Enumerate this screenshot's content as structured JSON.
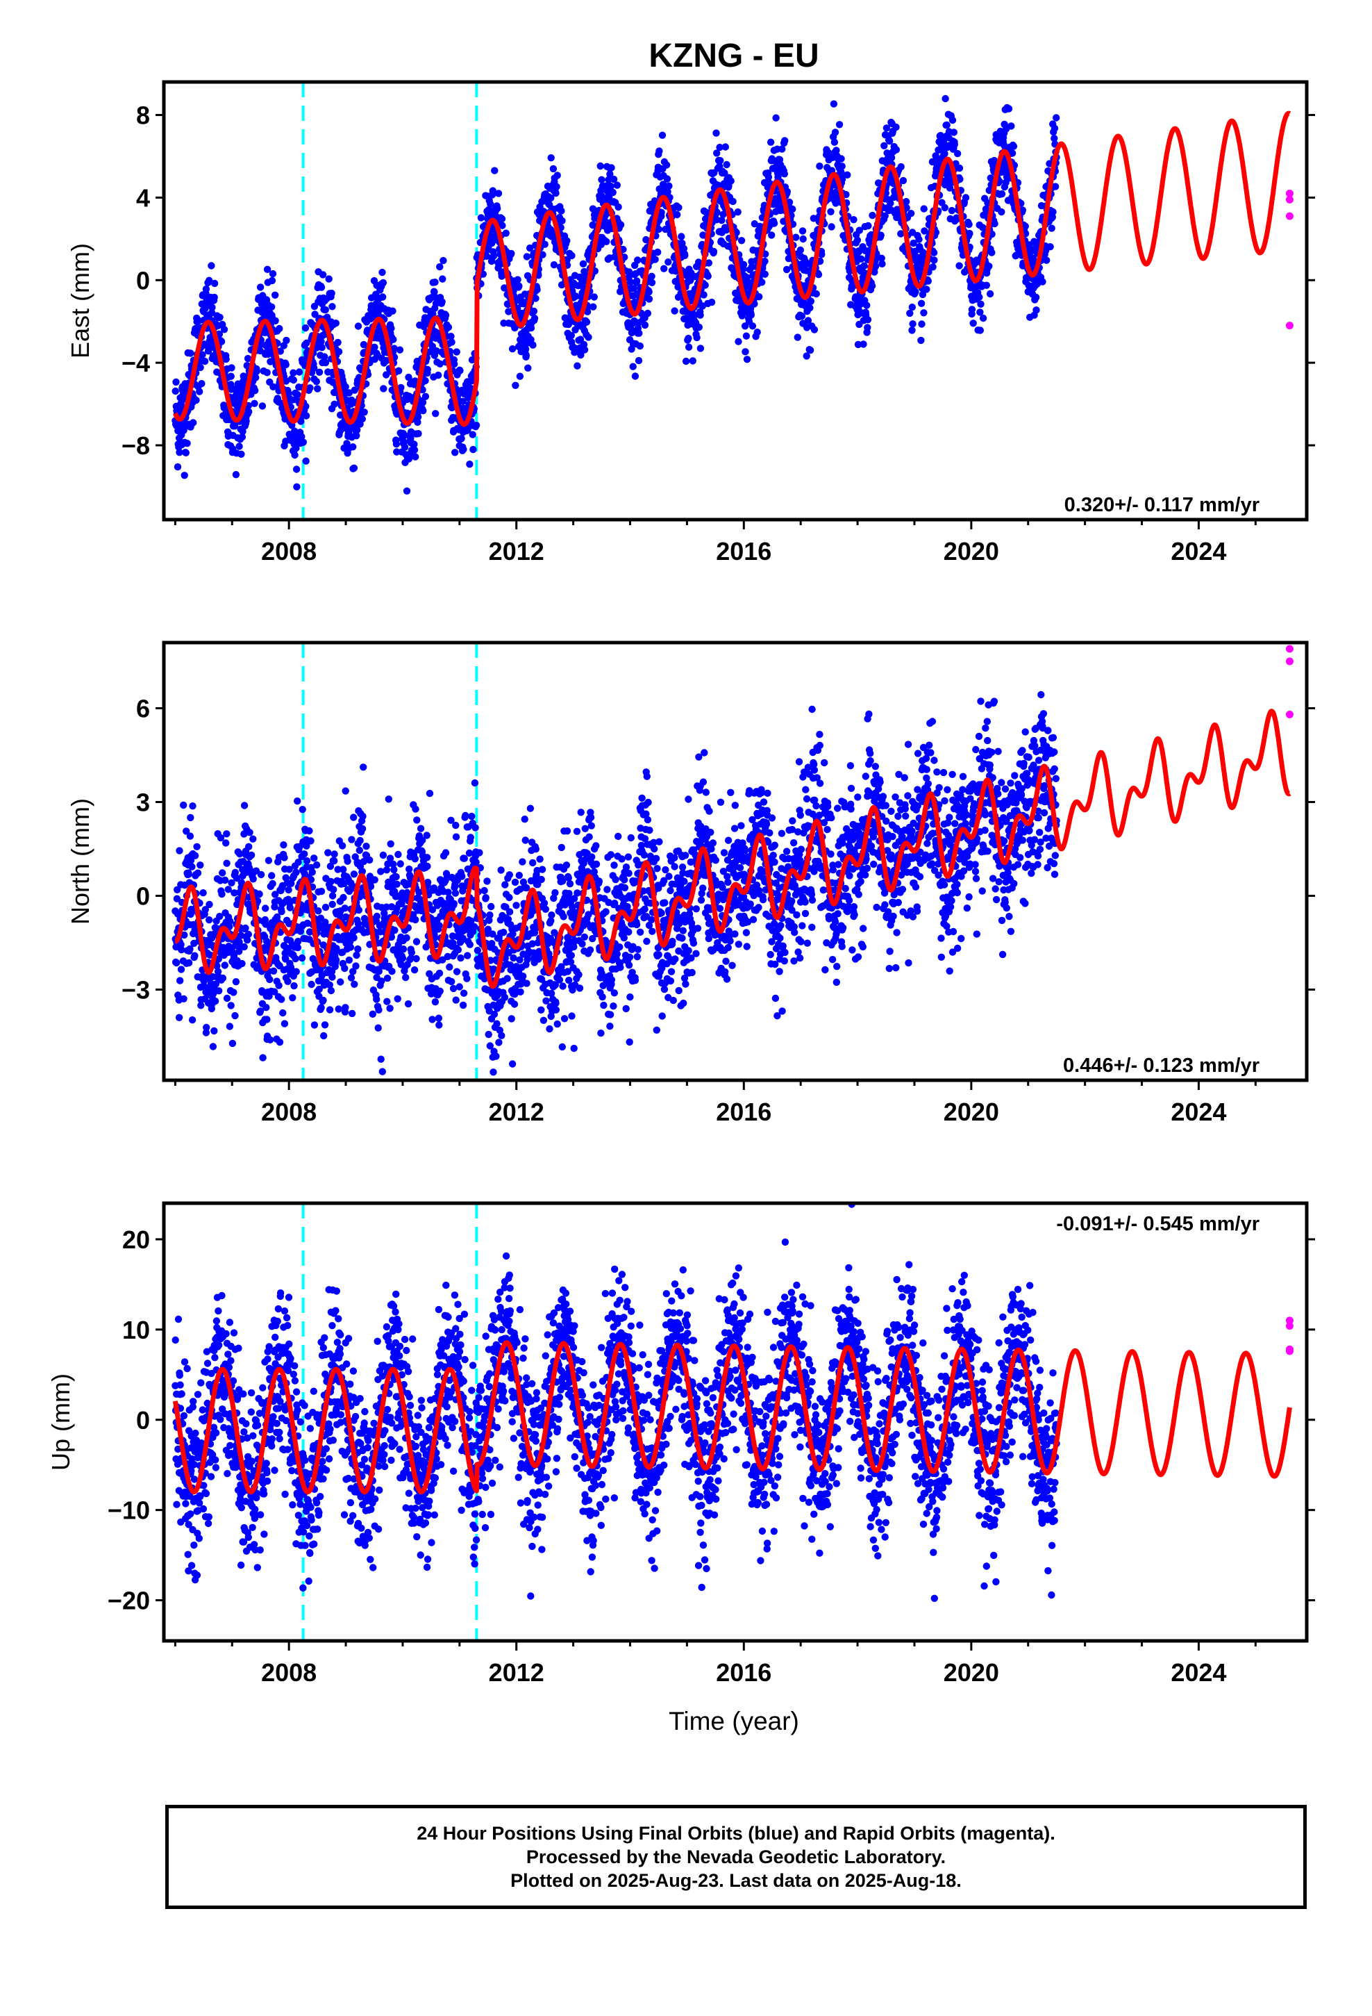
{
  "figure": {
    "title": "KZNG - EU",
    "xlabel": "Time (year)",
    "x_ticks": [
      2008,
      2012,
      2016,
      2020,
      2024
    ],
    "xlim": [
      2005.8,
      2025.9
    ],
    "colors": {
      "final_orbits": "#0000ff",
      "rapid_orbits": "#ff00ff",
      "model": "#ff0000",
      "offsets": "#00ffff"
    },
    "offset_epochs": [
      2008.25,
      2011.3
    ]
  },
  "caption": {
    "line1": "24 Hour Positions Using Final Orbits (blue) and Rapid Orbits (magenta).",
    "line2": "Processed by the Nevada Geodetic Laboratory.",
    "line3": "Plotted on 2025-Aug-23. Last data on 2025-Aug-18."
  },
  "chart_data": [
    {
      "type": "scatter",
      "ylabel": "East (mm)",
      "ylim": [
        -11.6,
        9.6
      ],
      "y_ticks": [
        8,
        4,
        0,
        -4,
        -8
      ],
      "y_tick_labels": [
        "8",
        "4",
        "0",
        "−4",
        "−8"
      ],
      "rate_label": "0.320+/- 0.117 mm/yr",
      "rate_position": "bottom-right",
      "final_orbits_span": [
        2006.0,
        2021.5
      ],
      "rapid_orbits": {
        "x": [
          2025.6,
          2025.6,
          2025.6,
          2025.6
        ],
        "y": [
          4.2,
          3.9,
          3.1,
          -2.2
        ]
      },
      "model": {
        "segments": [
          {
            "x_start": 2006.0,
            "x_end": 2011.3,
            "offset": -4.4,
            "rate": 0.0
          },
          {
            "x_start": 2011.3,
            "x_end": 2025.6,
            "offset": 0.2,
            "rate": 0.32
          }
        ],
        "annual_amp": 2.6,
        "annual_phase_year": 0.33,
        "amp_growth_per_year": 0.05,
        "semiannual_amp": 0.0,
        "semiannual_phase_year": 0.0,
        "ref_year": 2011.3
      },
      "scatter_sd": 1.15
    },
    {
      "type": "scatter",
      "ylabel": "North (mm)",
      "ylim": [
        -5.9,
        8.1
      ],
      "y_ticks": [
        6,
        3,
        0,
        -3
      ],
      "y_tick_labels": [
        "6",
        "3",
        "0",
        "−3"
      ],
      "rate_label": "0.446+/- 0.123 mm/yr",
      "rate_position": "bottom-right",
      "final_orbits_span": [
        2006.0,
        2021.5
      ],
      "rapid_orbits": {
        "x": [
          2025.6,
          2025.6,
          2025.6
        ],
        "y": [
          7.9,
          7.5,
          5.8
        ]
      },
      "model": {
        "segments": [
          {
            "x_start": 2006.0,
            "x_end": 2011.3,
            "offset": -1.2,
            "rate": 0.12
          },
          {
            "x_start": 2011.3,
            "x_end": 2025.6,
            "offset": -1.7,
            "rate": 0.44
          }
        ],
        "annual_amp": 0.9,
        "annual_phase_year": 0.95,
        "amp_growth_per_year": 0.0,
        "semiannual_amp": 0.7,
        "semiannual_phase_year": 0.18,
        "ref_year": 2006.0
      },
      "scatter_sd": 1.25
    },
    {
      "type": "scatter",
      "ylabel": "Up (mm)",
      "ylim": [
        -24.5,
        24.0
      ],
      "y_ticks": [
        20,
        10,
        0,
        -10,
        -20
      ],
      "y_tick_labels": [
        "20",
        "10",
        "0",
        "−10",
        "−20"
      ],
      "rate_label": "-0.091+/- 0.545 mm/yr",
      "rate_position": "top-right",
      "final_orbits_span": [
        2006.0,
        2021.5
      ],
      "rapid_orbits": {
        "x": [
          2025.6,
          2025.6,
          2025.6,
          2025.6
        ],
        "y": [
          11.0,
          10.4,
          7.8,
          7.6
        ]
      },
      "model": {
        "segments": [
          {
            "x_start": 2006.0,
            "x_end": 2011.3,
            "offset": -1.2,
            "rate": 0.0
          },
          {
            "x_start": 2011.3,
            "x_end": 2025.6,
            "offset": 1.8,
            "rate": -0.09
          }
        ],
        "annual_amp": 6.8,
        "annual_phase_year": 0.58,
        "amp_growth_per_year": 0.0,
        "semiannual_amp": 0.0,
        "semiannual_phase_year": 0.0,
        "ref_year": 2011.3
      },
      "scatter_sd": 4.6
    }
  ]
}
